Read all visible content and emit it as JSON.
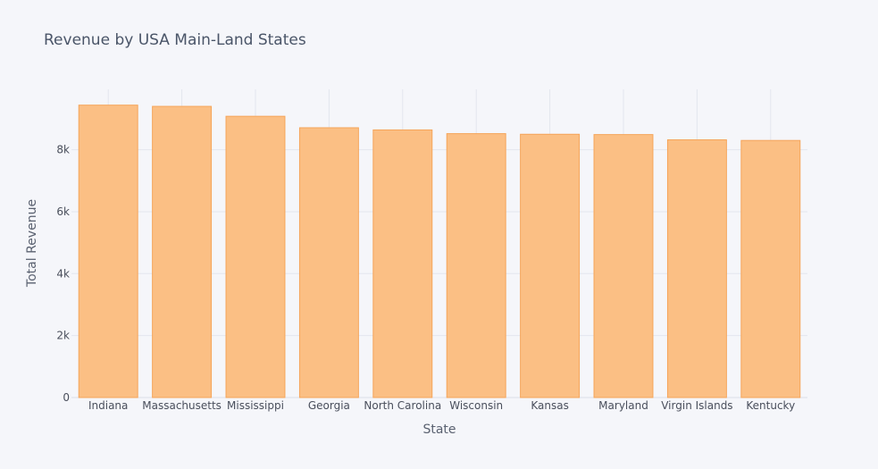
{
  "chart_data": {
    "type": "bar",
    "title": "Revenue by USA Main-Land States",
    "xlabel": "State",
    "ylabel": "Total Revenue",
    "categories": [
      "Indiana",
      "Massachusetts",
      "Mississippi",
      "Georgia",
      "North Carolina",
      "Wisconsin",
      "Kansas",
      "Maryland",
      "Virgin Islands",
      "Kentucky"
    ],
    "values": [
      9440,
      9400,
      9080,
      8710,
      8640,
      8520,
      8500,
      8490,
      8320,
      8300
    ],
    "ylim": [
      0,
      9950
    ],
    "yticks": [
      0,
      2000,
      4000,
      6000,
      8000
    ],
    "ytick_labels": [
      "0",
      "2k",
      "4k",
      "6k",
      "8k"
    ],
    "grid": true,
    "legend": false,
    "colors": {
      "bar_fill": "#fbbf84",
      "bar_stroke": "#f5a55a",
      "background": "#f5f6fa"
    }
  }
}
